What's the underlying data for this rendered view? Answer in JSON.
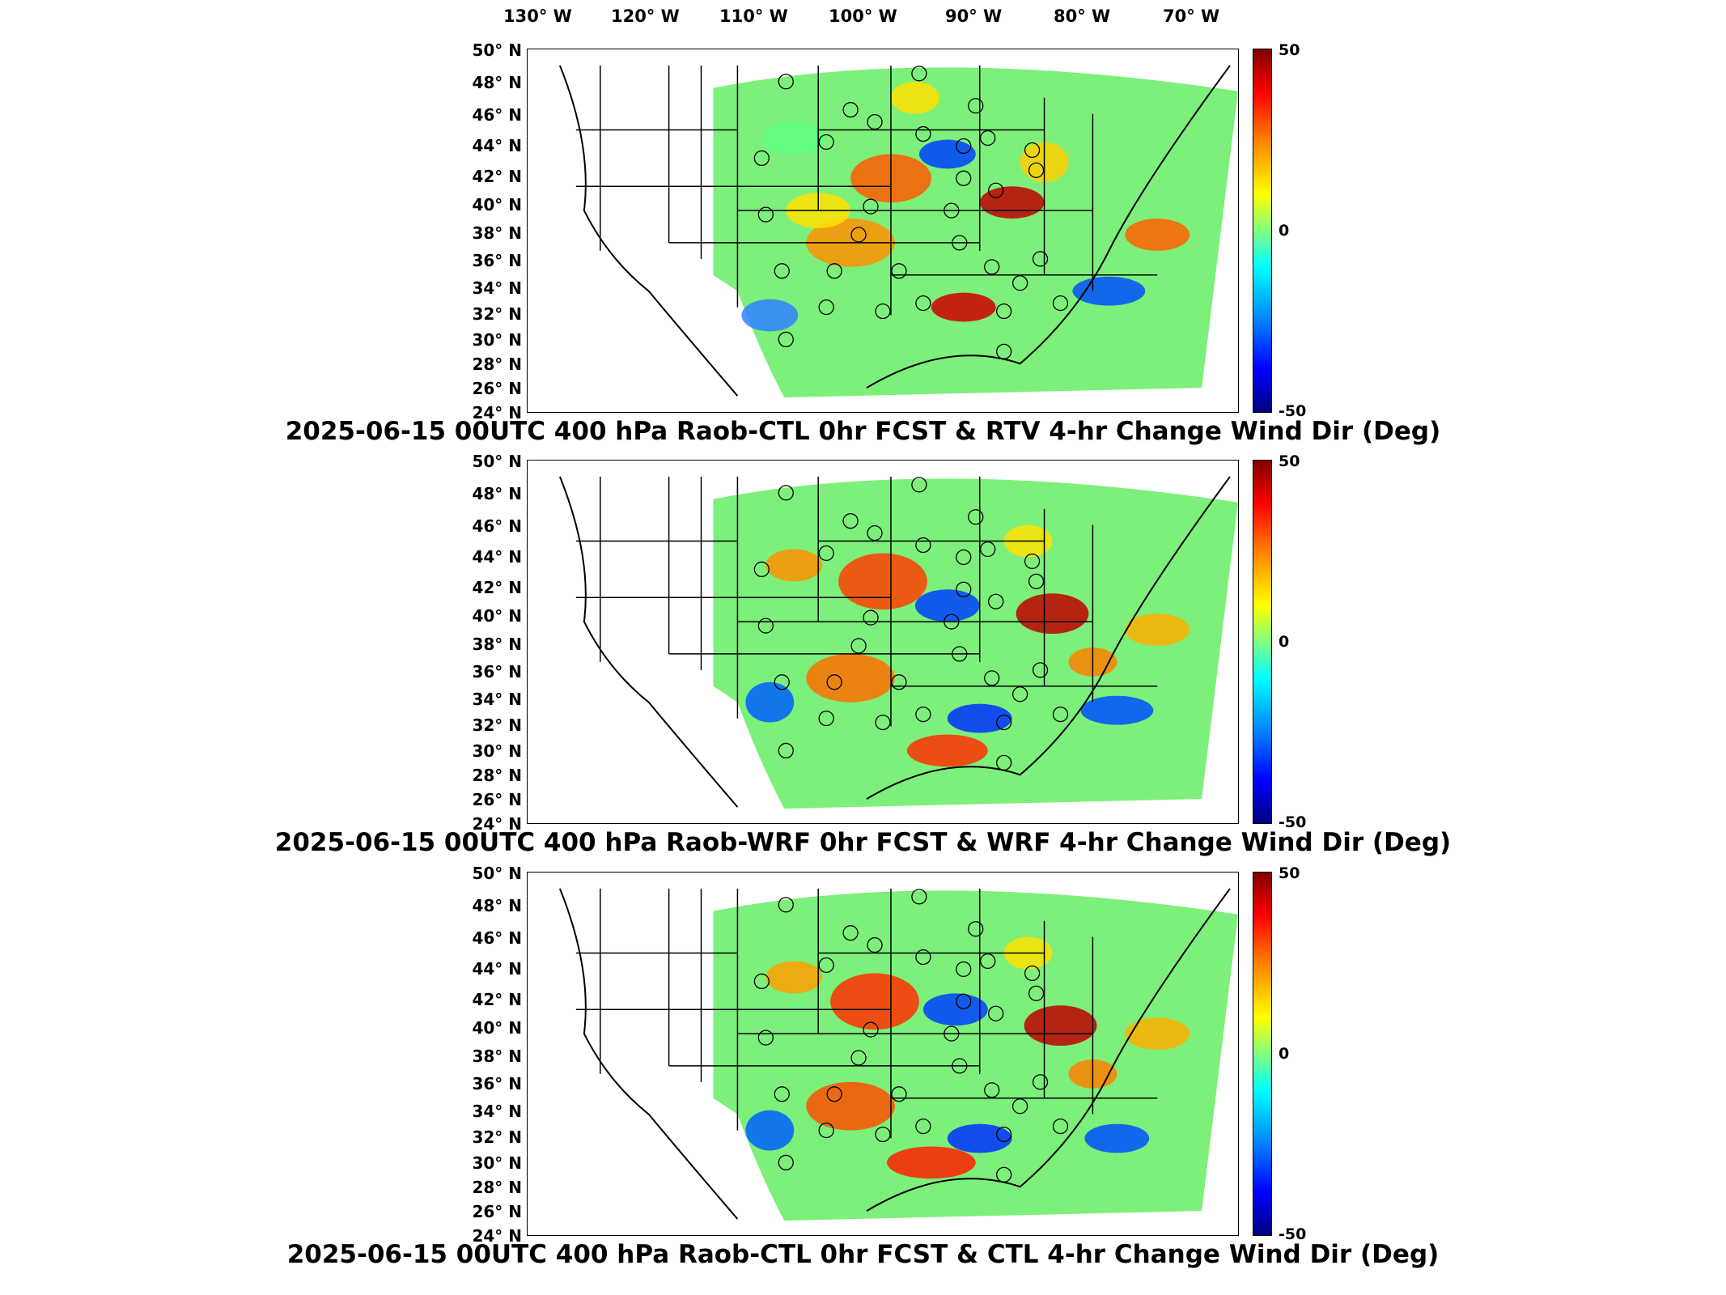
{
  "lon_labels": [
    "130° W",
    "120° W",
    "110° W",
    "100° W",
    "90° W",
    "80° W",
    "70° W"
  ],
  "lat_labels": [
    "50° N",
    "48° N",
    "46° N",
    "44° N",
    "42° N",
    "40° N",
    "38° N",
    "36° N",
    "34° N",
    "32° N",
    "30° N",
    "28° N",
    "26° N",
    "24° N"
  ],
  "colorbar": {
    "max": "50",
    "mid": "0",
    "min": "-50",
    "colors": [
      "#800000",
      "#ff0000",
      "#ff8000",
      "#ffff00",
      "#80ff80",
      "#00ffff",
      "#0080ff",
      "#0000ff",
      "#000080"
    ]
  },
  "panels": [
    {
      "title": "2025-06-15 00UTC 400 hPa Raob-CTL 0hr FCST & RTV 4-hr Change Wind Dir (Deg)"
    },
    {
      "title": "2025-06-15 00UTC 400 hPa Raob-WRF 0hr FCST & WRF 4-hr Change Wind Dir (Deg)"
    },
    {
      "title": "2025-06-15 00UTC 400 hPa Raob-CTL 0hr FCST & CTL 4-hr Change Wind Dir (Deg)"
    }
  ]
}
